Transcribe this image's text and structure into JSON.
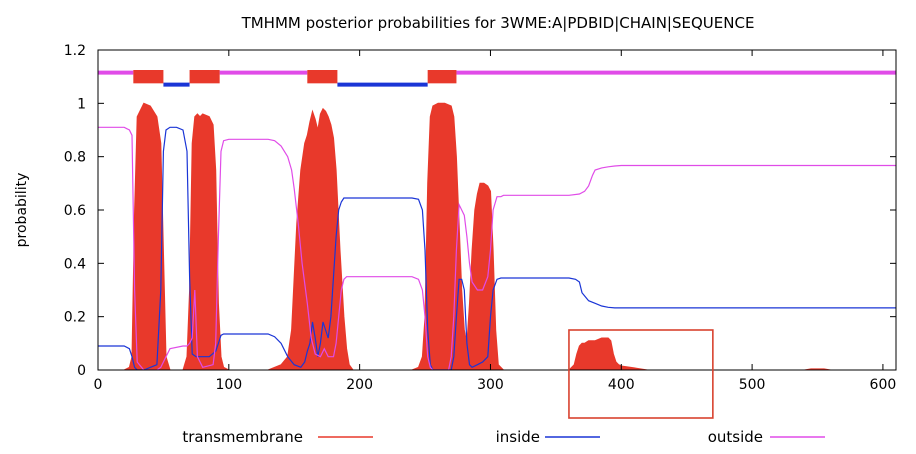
{
  "chart_data": {
    "type": "area",
    "title": "TMHMM posterior probabilities for 3WME:A|PDBID|CHAIN|SEQUENCE",
    "xlabel": "",
    "ylabel": "probability",
    "xlim": [
      0,
      610
    ],
    "ylim": [
      0,
      1.2
    ],
    "xticks": [
      "0",
      "100",
      "200",
      "300",
      "400",
      "500",
      "600"
    ],
    "yticks": [
      "0",
      "0.2",
      "0.4",
      "0.6",
      "0.8",
      "1",
      "1.2"
    ],
    "grid": false,
    "legend_position": "bottom",
    "colors": {
      "transmembrane": "#e8392b",
      "inside": "#1a35d6",
      "outside": "#e04ce8",
      "highlight": "#d9422f"
    },
    "legend": [
      {
        "key": "transmembrane",
        "label": "transmembrane"
      },
      {
        "key": "inside",
        "label": "inside"
      },
      {
        "key": "outside",
        "label": "outside"
      }
    ],
    "topology_bars": {
      "y_outside": 1.115,
      "y_inside": 1.07,
      "outside_segments": [
        [
          0,
          27
        ],
        [
          93,
          160
        ],
        [
          274,
          610
        ]
      ],
      "inside_segments": [
        [
          50,
          70
        ],
        [
          183,
          252
        ]
      ],
      "tm_segments": [
        [
          27,
          50
        ],
        [
          70,
          93
        ],
        [
          160,
          183
        ],
        [
          252,
          274
        ]
      ]
    },
    "series": [
      {
        "key": "transmembrane",
        "x": [
          0,
          20,
          24,
          26,
          28,
          30,
          35,
          40,
          45,
          48,
          50,
          52,
          55,
          60,
          65,
          68,
          70,
          72,
          74,
          76,
          78,
          80,
          85,
          88,
          90,
          92,
          94,
          96,
          100,
          120,
          130,
          135,
          140,
          145,
          148,
          150,
          152,
          155,
          158,
          160,
          162,
          164,
          166,
          168,
          170,
          172,
          174,
          176,
          178,
          180,
          182,
          185,
          188,
          190,
          192,
          195,
          200,
          240,
          245,
          248,
          250,
          252,
          254,
          256,
          260,
          265,
          270,
          272,
          274,
          276,
          278,
          280,
          282,
          284,
          286,
          288,
          290,
          292,
          295,
          298,
          300,
          302,
          304,
          306,
          310,
          320,
          360,
          364,
          366,
          368,
          370,
          372,
          375,
          380,
          385,
          390,
          392,
          394,
          396,
          398,
          400,
          410,
          420,
          540,
          545,
          555,
          560,
          610
        ],
        "values": [
          0,
          0,
          0.01,
          0.05,
          0.6,
          0.95,
          1.0,
          0.99,
          0.95,
          0.85,
          0.45,
          0.05,
          0,
          0,
          0,
          0.05,
          0.3,
          0.85,
          0.95,
          0.96,
          0.95,
          0.96,
          0.95,
          0.92,
          0.75,
          0.25,
          0.05,
          0.01,
          0,
          0,
          0,
          0.01,
          0.02,
          0.05,
          0.15,
          0.35,
          0.55,
          0.75,
          0.85,
          0.88,
          0.93,
          0.97,
          0.94,
          0.9,
          0.96,
          0.98,
          0.97,
          0.95,
          0.92,
          0.87,
          0.75,
          0.45,
          0.2,
          0.08,
          0.02,
          0,
          0,
          0,
          0.01,
          0.05,
          0.2,
          0.7,
          0.95,
          0.99,
          1.0,
          1.0,
          0.99,
          0.95,
          0.8,
          0.55,
          0.3,
          0.15,
          0.1,
          0.25,
          0.45,
          0.6,
          0.66,
          0.7,
          0.7,
          0.69,
          0.67,
          0.45,
          0.15,
          0.02,
          0,
          0,
          0,
          0.02,
          0.06,
          0.09,
          0.1,
          0.1,
          0.11,
          0.11,
          0.12,
          0.12,
          0.11,
          0.06,
          0.03,
          0.02,
          0.015,
          0.008,
          0,
          0,
          0.004,
          0.004,
          0,
          0
        ]
      },
      {
        "key": "inside",
        "x": [
          0,
          20,
          24,
          26,
          28,
          30,
          35,
          45,
          48,
          50,
          52,
          55,
          60,
          65,
          68,
          70,
          72,
          75,
          85,
          90,
          92,
          94,
          96,
          100,
          130,
          135,
          140,
          145,
          150,
          155,
          158,
          160,
          162,
          164,
          166,
          168,
          170,
          172,
          174,
          176,
          178,
          180,
          182,
          184,
          186,
          188,
          190,
          200,
          240,
          245,
          248,
          250,
          252,
          254,
          256,
          260,
          270,
          272,
          274,
          276,
          278,
          280,
          282,
          284,
          286,
          290,
          294,
          298,
          300,
          302,
          305,
          308,
          310,
          360,
          365,
          368,
          370,
          375,
          380,
          385,
          390,
          395,
          400,
          610
        ],
        "values": [
          0.09,
          0.09,
          0.08,
          0.05,
          0.01,
          0,
          0,
          0.02,
          0.3,
          0.82,
          0.9,
          0.91,
          0.91,
          0.9,
          0.82,
          0.35,
          0.06,
          0.05,
          0.05,
          0.07,
          0.1,
          0.13,
          0.135,
          0.135,
          0.135,
          0.125,
          0.1,
          0.05,
          0.02,
          0.01,
          0.03,
          0.07,
          0.1,
          0.18,
          0.12,
          0.05,
          0.1,
          0.18,
          0.15,
          0.12,
          0.2,
          0.35,
          0.5,
          0.6,
          0.63,
          0.645,
          0.645,
          0.645,
          0.645,
          0.64,
          0.6,
          0.45,
          0.15,
          0.02,
          0,
          0,
          0,
          0.05,
          0.2,
          0.34,
          0.34,
          0.3,
          0.1,
          0.02,
          0.01,
          0.02,
          0.03,
          0.05,
          0.2,
          0.3,
          0.34,
          0.345,
          0.345,
          0.345,
          0.34,
          0.33,
          0.29,
          0.26,
          0.25,
          0.24,
          0.235,
          0.233,
          0.233,
          0.233
        ]
      },
      {
        "key": "outside",
        "x": [
          0,
          20,
          24,
          26,
          28,
          30,
          35,
          45,
          48,
          50,
          52,
          55,
          65,
          68,
          70,
          72,
          74,
          76,
          80,
          88,
          90,
          92,
          94,
          96,
          100,
          130,
          135,
          140,
          145,
          148,
          150,
          153,
          156,
          160,
          163,
          166,
          170,
          173,
          176,
          180,
          182,
          184,
          186,
          188,
          190,
          200,
          240,
          245,
          248,
          250,
          252,
          254,
          256,
          260,
          268,
          270,
          272,
          274,
          276,
          278,
          280,
          282,
          284,
          286,
          290,
          294,
          298,
          300,
          302,
          305,
          308,
          310,
          360,
          368,
          372,
          375,
          378,
          380,
          385,
          390,
          395,
          400,
          610
        ],
        "values": [
          0.91,
          0.91,
          0.9,
          0.88,
          0.3,
          0.03,
          0,
          0,
          0.01,
          0.03,
          0.05,
          0.08,
          0.09,
          0.09,
          0.1,
          0.12,
          0.3,
          0.05,
          0.01,
          0.02,
          0.1,
          0.5,
          0.82,
          0.86,
          0.865,
          0.865,
          0.86,
          0.84,
          0.8,
          0.75,
          0.68,
          0.55,
          0.4,
          0.25,
          0.12,
          0.06,
          0.05,
          0.08,
          0.05,
          0.05,
          0.1,
          0.2,
          0.3,
          0.34,
          0.35,
          0.35,
          0.35,
          0.34,
          0.3,
          0.2,
          0.05,
          0.01,
          0,
          0,
          0,
          0.05,
          0.2,
          0.45,
          0.62,
          0.6,
          0.58,
          0.5,
          0.4,
          0.33,
          0.3,
          0.3,
          0.35,
          0.45,
          0.6,
          0.65,
          0.65,
          0.655,
          0.655,
          0.66,
          0.67,
          0.69,
          0.73,
          0.75,
          0.758,
          0.762,
          0.765,
          0.767,
          0.767
        ]
      }
    ],
    "annotations": [
      {
        "type": "rectangle",
        "x0": 360,
        "x1": 470,
        "y0": -0.18,
        "y1": 0.15,
        "color": "#d9422f"
      }
    ]
  }
}
